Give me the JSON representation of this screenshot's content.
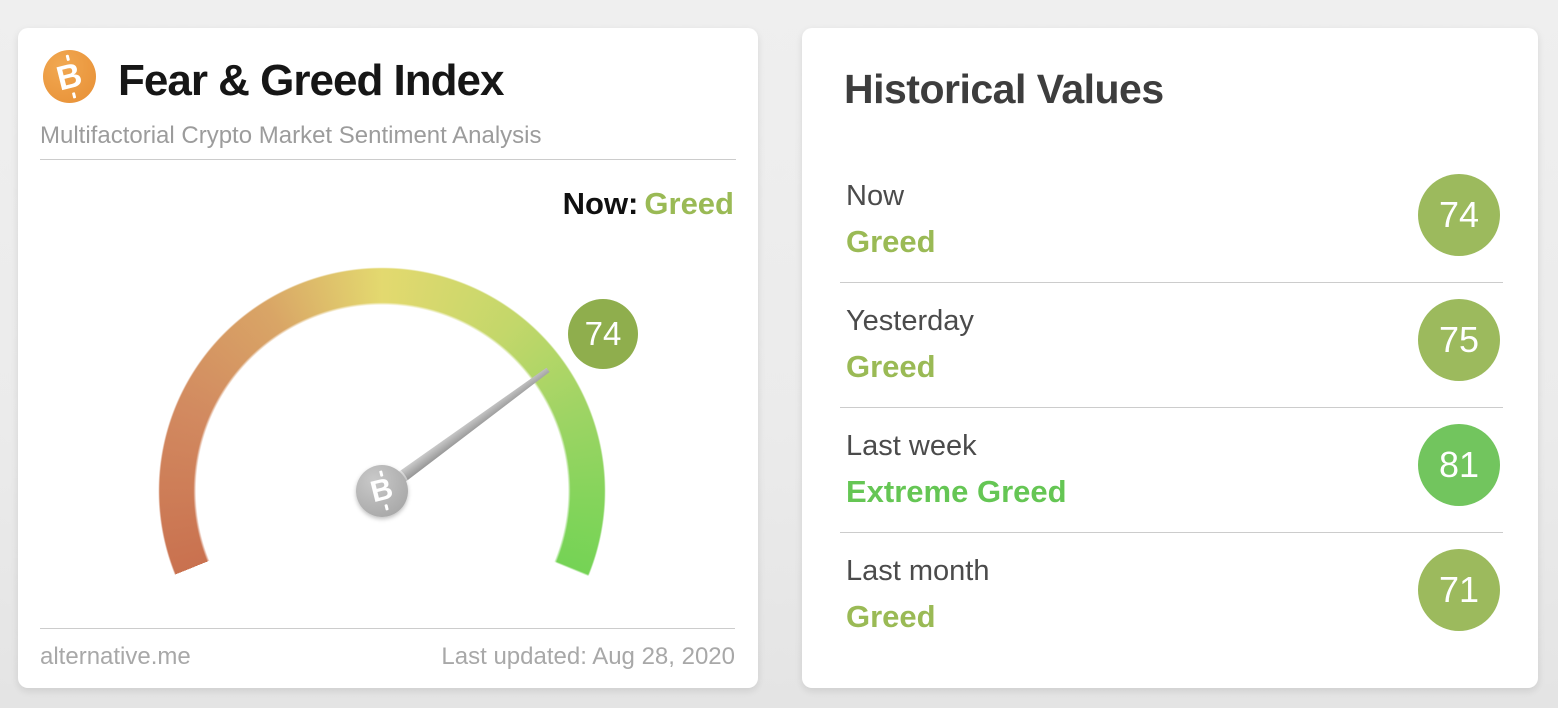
{
  "gauge_card": {
    "title": "Fear & Greed Index",
    "subtitle": "Multifactorial Crypto Market Sentiment Analysis",
    "now_label": "Now:",
    "now_value": "Greed",
    "value_label": "74",
    "source": "alternative.me",
    "last_updated": "Last updated: Aug 28, 2020"
  },
  "historical_card": {
    "title": "Historical Values",
    "rows": [
      {
        "label": "Now",
        "classification": "Greed",
        "value": "74",
        "classification_class": "clf greed",
        "badge_class": "badge olive"
      },
      {
        "label": "Yesterday",
        "classification": "Greed",
        "value": "75",
        "classification_class": "clf greed",
        "badge_class": "badge olive"
      },
      {
        "label": "Last week",
        "classification": "Extreme Greed",
        "value": "81",
        "classification_class": "clf extreme",
        "badge_class": "badge bright"
      },
      {
        "label": "Last month",
        "classification": "Greed",
        "value": "71",
        "classification_class": "clf greed",
        "badge_class": "badge olive"
      }
    ]
  },
  "icons": {
    "bitcoin_glyph": "B"
  },
  "colors": {
    "page_bg": "#ebebeb",
    "card_bg": "#ffffff",
    "btc_orange": "#e8963e",
    "greed": "#9aba55",
    "extreme": "#65c654",
    "olive": "#9cba5d",
    "bright": "#72c55e",
    "gauge_badge": "#8fae4d",
    "needle": "#a6a6a6",
    "divider": "#cccccc",
    "text_dark": "#161616",
    "text_mid": "#4b4b4b",
    "text_gray": "#9c9c9c",
    "footer_gray": "#a8a8a8",
    "hist_title": "#3d3d3d"
  },
  "chart_data": {
    "type": "gauge",
    "title": "Fear & Greed Index",
    "value": 74,
    "min": 0,
    "max": 100,
    "classification": "Greed",
    "start_deg": 248,
    "sweep_deg": 224,
    "color_stops": [
      [
        "#c9714f",
        0
      ],
      [
        "#d28a60",
        45
      ],
      [
        "#d9a566",
        80
      ],
      [
        "#e3d96f",
        112
      ],
      [
        "#c3d76a",
        150
      ],
      [
        "#9ed464",
        180
      ],
      [
        "#84d45b",
        205
      ],
      [
        "#75d355",
        224
      ]
    ],
    "historical": [
      {
        "period": "Now",
        "value": 74,
        "classification": "Greed"
      },
      {
        "period": "Yesterday",
        "value": 75,
        "classification": "Greed"
      },
      {
        "period": "Last week",
        "value": 81,
        "classification": "Extreme Greed"
      },
      {
        "period": "Last month",
        "value": 71,
        "classification": "Greed"
      }
    ]
  }
}
